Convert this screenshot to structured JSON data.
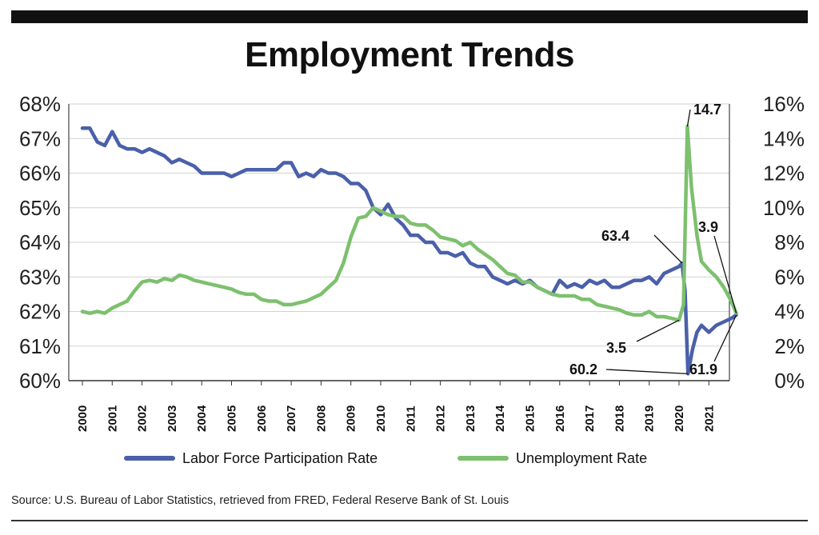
{
  "title": "Employment Trends",
  "source": "Source: U.S. Bureau of Labor Statistics, retrieved from FRED, Federal Reserve Bank of St. Louis",
  "colors": {
    "lfpr": "#4a60aa",
    "unemp": "#7dc06e",
    "grid": "#d2d2d2",
    "rule": "#111111"
  },
  "chart_data": {
    "type": "line",
    "title": "Employment Trends",
    "x_ticks": [
      "2000",
      "2001",
      "2002",
      "2003",
      "2004",
      "2005",
      "2006",
      "2007",
      "2008",
      "2009",
      "2010",
      "2011",
      "2012",
      "2013",
      "2014",
      "2015",
      "2016",
      "2017",
      "2018",
      "2019",
      "2020",
      "2021"
    ],
    "x_range": [
      2000,
      2022
    ],
    "y_left": {
      "ticks": [
        "60%",
        "61%",
        "62%",
        "63%",
        "64%",
        "65%",
        "66%",
        "67%",
        "68%"
      ],
      "range": [
        60,
        68
      ],
      "unit": "%"
    },
    "y_right": {
      "ticks": [
        "0%",
        "2%",
        "4%",
        "6%",
        "8%",
        "10%",
        "12%",
        "14%",
        "16%"
      ],
      "range": [
        0,
        16
      ],
      "unit": "%"
    },
    "grid": "horizontal",
    "legend_position": "bottom",
    "series": [
      {
        "name": "Labor Force Participation Rate",
        "axis": "left",
        "color": "#4a60aa",
        "points": [
          [
            2000.0,
            67.3
          ],
          [
            2000.25,
            67.3
          ],
          [
            2000.5,
            66.9
          ],
          [
            2000.75,
            66.8
          ],
          [
            2001.0,
            67.2
          ],
          [
            2001.25,
            66.8
          ],
          [
            2001.5,
            66.7
          ],
          [
            2001.75,
            66.7
          ],
          [
            2002.0,
            66.6
          ],
          [
            2002.25,
            66.7
          ],
          [
            2002.5,
            66.6
          ],
          [
            2002.75,
            66.5
          ],
          [
            2003.0,
            66.3
          ],
          [
            2003.25,
            66.4
          ],
          [
            2003.5,
            66.3
          ],
          [
            2003.75,
            66.2
          ],
          [
            2004.0,
            66.0
          ],
          [
            2004.25,
            66.0
          ],
          [
            2004.5,
            66.0
          ],
          [
            2004.75,
            66.0
          ],
          [
            2005.0,
            65.9
          ],
          [
            2005.25,
            66.0
          ],
          [
            2005.5,
            66.1
          ],
          [
            2005.75,
            66.1
          ],
          [
            2006.0,
            66.1
          ],
          [
            2006.25,
            66.1
          ],
          [
            2006.5,
            66.1
          ],
          [
            2006.75,
            66.3
          ],
          [
            2007.0,
            66.3
          ],
          [
            2007.25,
            65.9
          ],
          [
            2007.5,
            66.0
          ],
          [
            2007.75,
            65.9
          ],
          [
            2008.0,
            66.1
          ],
          [
            2008.25,
            66.0
          ],
          [
            2008.5,
            66.0
          ],
          [
            2008.75,
            65.9
          ],
          [
            2009.0,
            65.7
          ],
          [
            2009.25,
            65.7
          ],
          [
            2009.5,
            65.5
          ],
          [
            2009.75,
            65.0
          ],
          [
            2010.0,
            64.8
          ],
          [
            2010.25,
            65.1
          ],
          [
            2010.5,
            64.7
          ],
          [
            2010.75,
            64.5
          ],
          [
            2011.0,
            64.2
          ],
          [
            2011.25,
            64.2
          ],
          [
            2011.5,
            64.0
          ],
          [
            2011.75,
            64.0
          ],
          [
            2012.0,
            63.7
          ],
          [
            2012.25,
            63.7
          ],
          [
            2012.5,
            63.6
          ],
          [
            2012.75,
            63.7
          ],
          [
            2013.0,
            63.4
          ],
          [
            2013.25,
            63.3
          ],
          [
            2013.5,
            63.3
          ],
          [
            2013.75,
            63.0
          ],
          [
            2014.0,
            62.9
          ],
          [
            2014.25,
            62.8
          ],
          [
            2014.5,
            62.9
          ],
          [
            2014.75,
            62.8
          ],
          [
            2015.0,
            62.9
          ],
          [
            2015.25,
            62.7
          ],
          [
            2015.5,
            62.6
          ],
          [
            2015.75,
            62.5
          ],
          [
            2016.0,
            62.9
          ],
          [
            2016.25,
            62.7
          ],
          [
            2016.5,
            62.8
          ],
          [
            2016.75,
            62.7
          ],
          [
            2017.0,
            62.9
          ],
          [
            2017.25,
            62.8
          ],
          [
            2017.5,
            62.9
          ],
          [
            2017.75,
            62.7
          ],
          [
            2018.0,
            62.7
          ],
          [
            2018.25,
            62.8
          ],
          [
            2018.5,
            62.9
          ],
          [
            2018.75,
            62.9
          ],
          [
            2019.0,
            63.0
          ],
          [
            2019.25,
            62.8
          ],
          [
            2019.5,
            63.1
          ],
          [
            2019.75,
            63.2
          ],
          [
            2020.0,
            63.3
          ],
          [
            2020.1,
            63.4
          ],
          [
            2020.2,
            62.6
          ],
          [
            2020.3,
            60.2
          ],
          [
            2020.45,
            60.9
          ],
          [
            2020.6,
            61.4
          ],
          [
            2020.75,
            61.6
          ],
          [
            2021.0,
            61.4
          ],
          [
            2021.25,
            61.6
          ],
          [
            2021.5,
            61.7
          ],
          [
            2021.75,
            61.8
          ],
          [
            2021.92,
            61.9
          ]
        ]
      },
      {
        "name": "Unemployment Rate",
        "axis": "right",
        "color": "#7dc06e",
        "points": [
          [
            2000.0,
            4.0
          ],
          [
            2000.25,
            3.9
          ],
          [
            2000.5,
            4.0
          ],
          [
            2000.75,
            3.9
          ],
          [
            2001.0,
            4.2
          ],
          [
            2001.25,
            4.4
          ],
          [
            2001.5,
            4.6
          ],
          [
            2001.75,
            5.2
          ],
          [
            2002.0,
            5.7
          ],
          [
            2002.25,
            5.8
          ],
          [
            2002.5,
            5.7
          ],
          [
            2002.75,
            5.9
          ],
          [
            2003.0,
            5.8
          ],
          [
            2003.25,
            6.1
          ],
          [
            2003.5,
            6.0
          ],
          [
            2003.75,
            5.8
          ],
          [
            2004.0,
            5.7
          ],
          [
            2004.25,
            5.6
          ],
          [
            2004.5,
            5.5
          ],
          [
            2004.75,
            5.4
          ],
          [
            2005.0,
            5.3
          ],
          [
            2005.25,
            5.1
          ],
          [
            2005.5,
            5.0
          ],
          [
            2005.75,
            5.0
          ],
          [
            2006.0,
            4.7
          ],
          [
            2006.25,
            4.6
          ],
          [
            2006.5,
            4.6
          ],
          [
            2006.75,
            4.4
          ],
          [
            2007.0,
            4.4
          ],
          [
            2007.25,
            4.5
          ],
          [
            2007.5,
            4.6
          ],
          [
            2007.75,
            4.8
          ],
          [
            2008.0,
            5.0
          ],
          [
            2008.25,
            5.4
          ],
          [
            2008.5,
            5.8
          ],
          [
            2008.75,
            6.8
          ],
          [
            2009.0,
            8.3
          ],
          [
            2009.25,
            9.4
          ],
          [
            2009.5,
            9.5
          ],
          [
            2009.75,
            10.0
          ],
          [
            2010.0,
            9.8
          ],
          [
            2010.25,
            9.6
          ],
          [
            2010.5,
            9.5
          ],
          [
            2010.75,
            9.5
          ],
          [
            2011.0,
            9.1
          ],
          [
            2011.25,
            9.0
          ],
          [
            2011.5,
            9.0
          ],
          [
            2011.75,
            8.7
          ],
          [
            2012.0,
            8.3
          ],
          [
            2012.25,
            8.2
          ],
          [
            2012.5,
            8.1
          ],
          [
            2012.75,
            7.8
          ],
          [
            2013.0,
            8.0
          ],
          [
            2013.25,
            7.6
          ],
          [
            2013.5,
            7.3
          ],
          [
            2013.75,
            7.0
          ],
          [
            2014.0,
            6.6
          ],
          [
            2014.25,
            6.2
          ],
          [
            2014.5,
            6.1
          ],
          [
            2014.75,
            5.7
          ],
          [
            2015.0,
            5.7
          ],
          [
            2015.25,
            5.4
          ],
          [
            2015.5,
            5.2
          ],
          [
            2015.75,
            5.0
          ],
          [
            2016.0,
            4.9
          ],
          [
            2016.25,
            4.9
          ],
          [
            2016.5,
            4.9
          ],
          [
            2016.75,
            4.7
          ],
          [
            2017.0,
            4.7
          ],
          [
            2017.25,
            4.4
          ],
          [
            2017.5,
            4.3
          ],
          [
            2017.75,
            4.2
          ],
          [
            2018.0,
            4.1
          ],
          [
            2018.25,
            3.9
          ],
          [
            2018.5,
            3.8
          ],
          [
            2018.75,
            3.8
          ],
          [
            2019.0,
            4.0
          ],
          [
            2019.25,
            3.7
          ],
          [
            2019.5,
            3.7
          ],
          [
            2019.75,
            3.6
          ],
          [
            2020.0,
            3.5
          ],
          [
            2020.15,
            4.4
          ],
          [
            2020.28,
            14.7
          ],
          [
            2020.42,
            11.1
          ],
          [
            2020.6,
            8.4
          ],
          [
            2020.75,
            6.9
          ],
          [
            2021.0,
            6.4
          ],
          [
            2021.25,
            6.0
          ],
          [
            2021.5,
            5.4
          ],
          [
            2021.75,
            4.6
          ],
          [
            2021.92,
            3.9
          ]
        ]
      }
    ],
    "annotations": [
      {
        "text": "14.7",
        "axis": "right",
        "x": 2020.28,
        "y": 14.7
      },
      {
        "text": "63.4",
        "axis": "left",
        "x": 2020.1,
        "y": 63.4
      },
      {
        "text": "3.5",
        "axis": "right",
        "x": 2020.0,
        "y": 3.5
      },
      {
        "text": "60.2",
        "axis": "left",
        "x": 2020.3,
        "y": 60.2
      },
      {
        "text": "3.9",
        "axis": "right",
        "x": 2021.92,
        "y": 3.9
      },
      {
        "text": "61.9",
        "axis": "left",
        "x": 2021.92,
        "y": 61.9
      }
    ]
  }
}
